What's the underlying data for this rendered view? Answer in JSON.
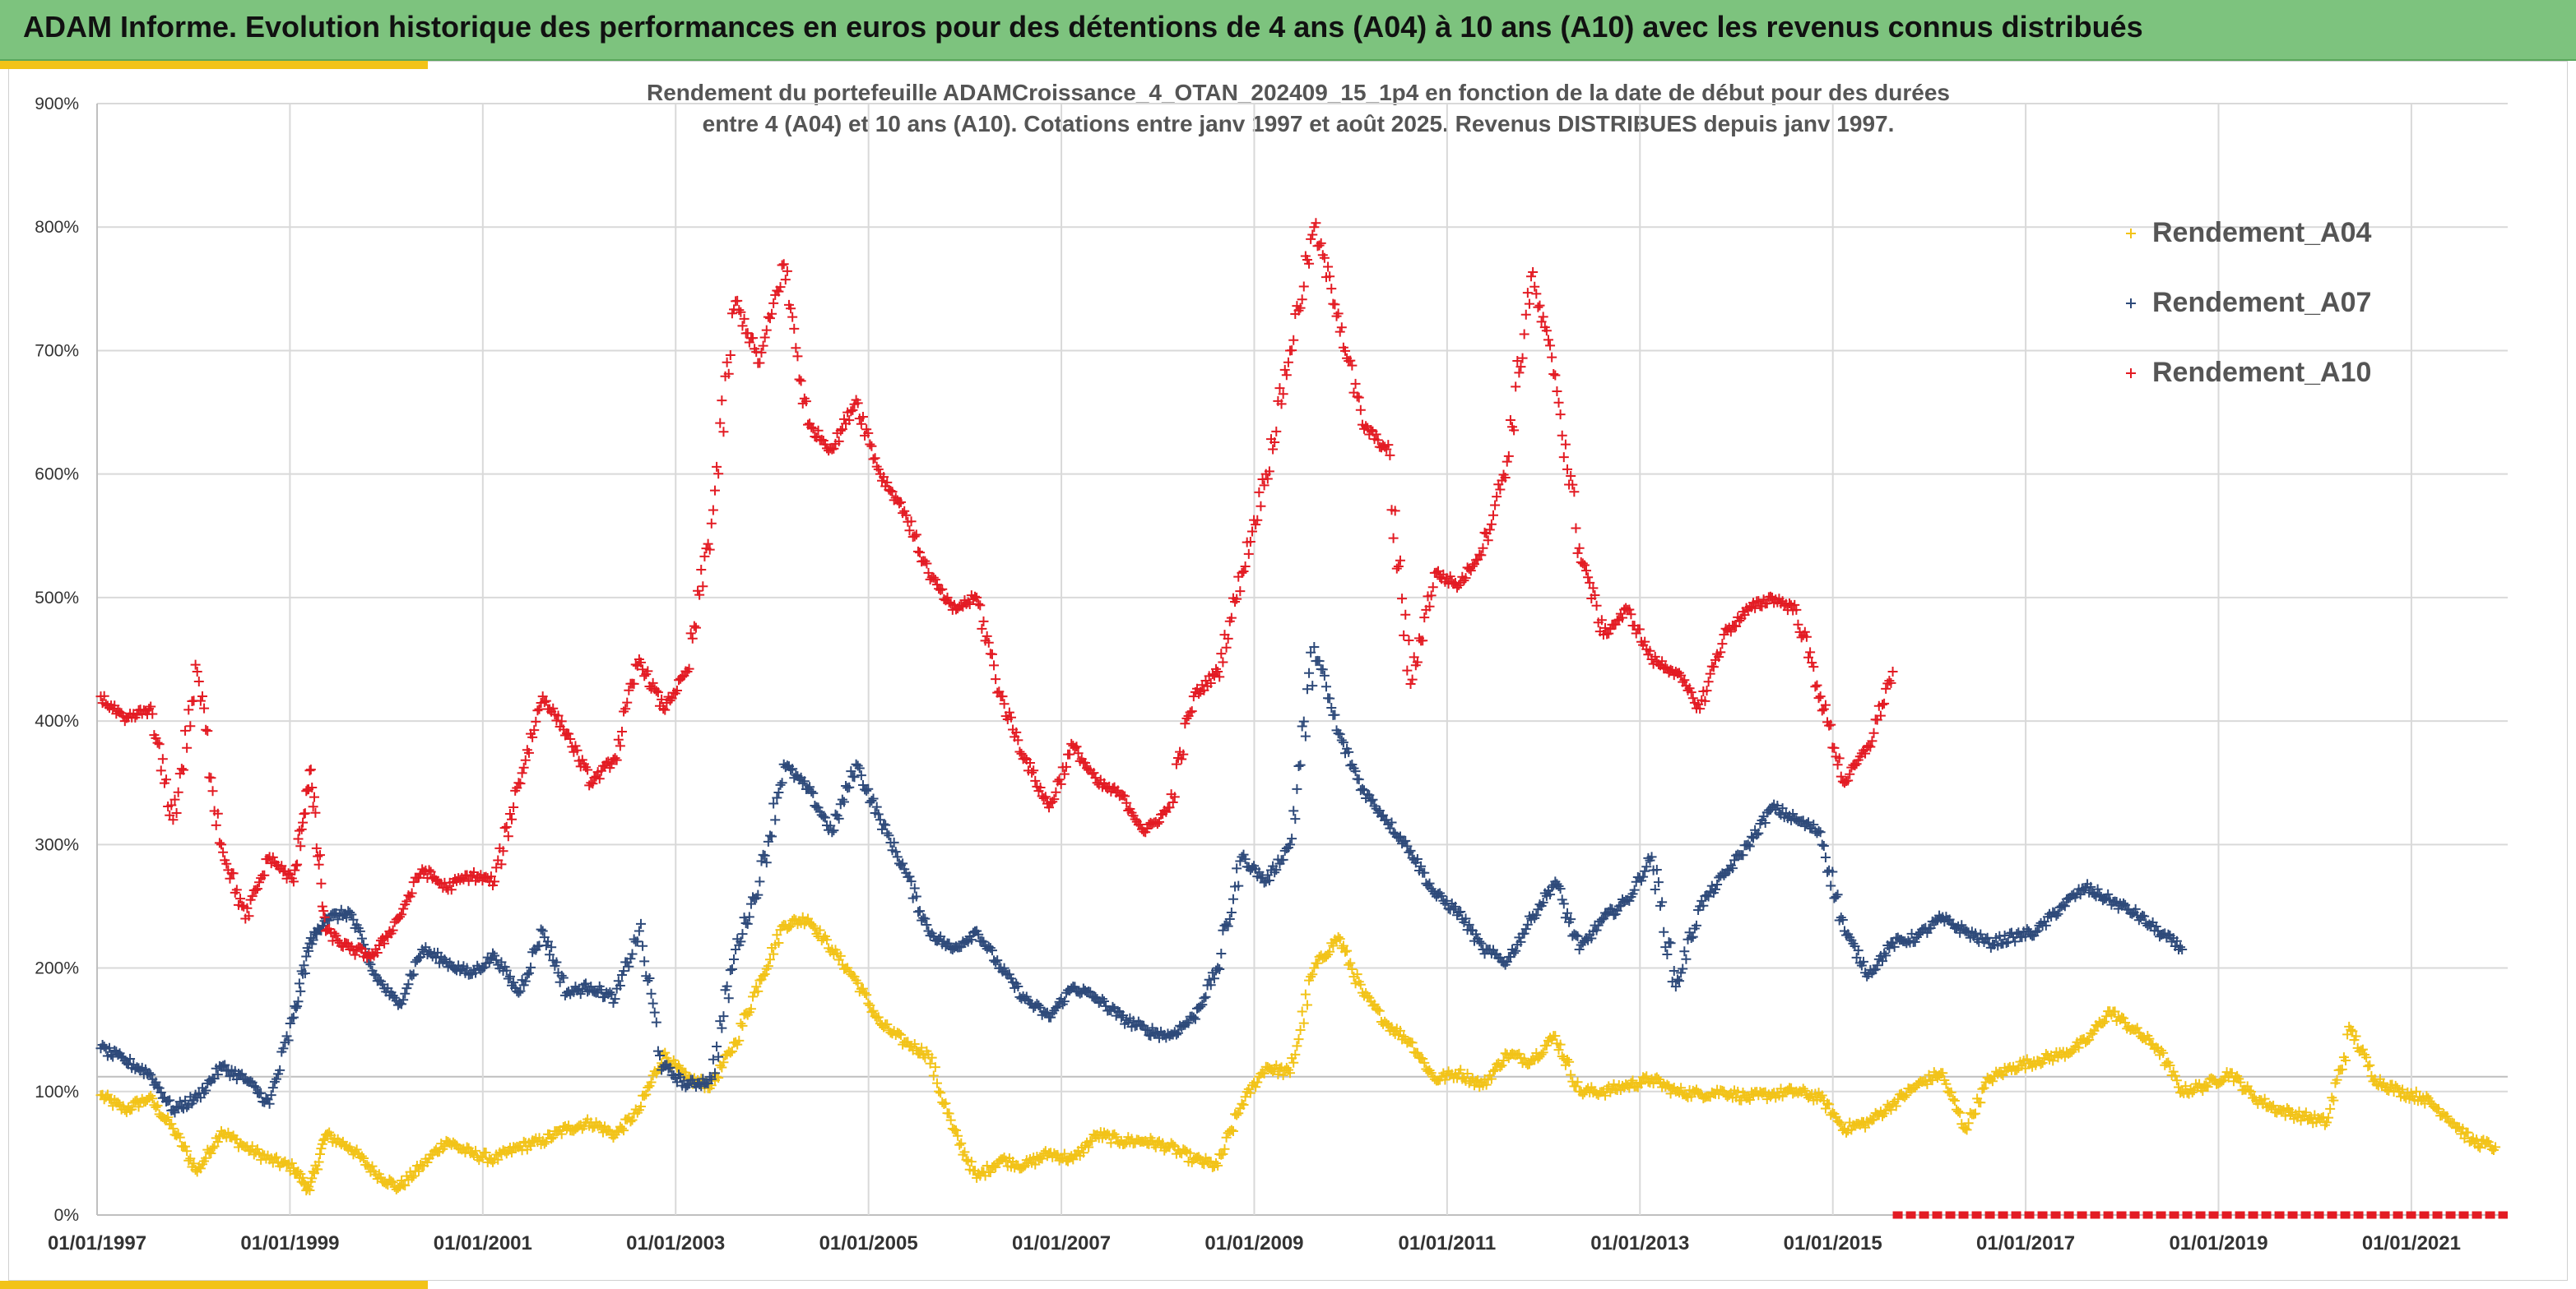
{
  "header": {
    "title": "ADAM Informe. Evolution historique des performances en euros pour des détentions de 4 ans (A04) à 10 ans (A10) avec les revenus connus distribués"
  },
  "chart_data": {
    "type": "scatter",
    "title_line1": "Rendement du portefeuille ADAMCroissance_4_OTAN_202409_15_1p4  en fonction de la date de début pour des durées",
    "title_line2": "entre 4 (A04) et 10 ans (A10). Cotations entre janv 1997 et août 2025. Revenus DISTRIBUES depuis janv 1997.",
    "xlabel": "",
    "ylabel": "",
    "x_tick_labels": [
      "01/01/1997",
      "01/01/1999",
      "01/01/2001",
      "01/01/2003",
      "01/01/2005",
      "01/01/2007",
      "01/01/2009",
      "01/01/2011",
      "01/01/2013",
      "01/01/2015",
      "01/01/2017",
      "01/01/2019",
      "01/01/2021"
    ],
    "y_tick_labels": [
      "0%",
      "100%",
      "200%",
      "300%",
      "400%",
      "500%",
      "600%",
      "700%",
      "800%",
      "900%"
    ],
    "xlim": [
      "1997-01-01",
      "2021-12-31"
    ],
    "ylim": [
      0,
      900
    ],
    "y_unit": "%",
    "grid": true,
    "legend_position": "top-right",
    "colors": {
      "Rendement_A04": "#f2c318",
      "Rendement_A07": "#2e4a7a",
      "Rendement_A10": "#e31b23",
      "grid": "#d9d9d9",
      "axis_text": "#333333"
    },
    "series": [
      {
        "name": "Rendement_A04",
        "points": [
          [
            "1997-01",
            97
          ],
          [
            "1997-04",
            85
          ],
          [
            "1997-07",
            95
          ],
          [
            "1997-10",
            70
          ],
          [
            "1998-01",
            35
          ],
          [
            "1998-04",
            68
          ],
          [
            "1998-07",
            55
          ],
          [
            "1998-10",
            45
          ],
          [
            "1999-01",
            38
          ],
          [
            "1999-03",
            20
          ],
          [
            "1999-05",
            65
          ],
          [
            "1999-08",
            55
          ],
          [
            "1999-11",
            35
          ],
          [
            "2000-02",
            22
          ],
          [
            "2000-05",
            40
          ],
          [
            "2000-08",
            60
          ],
          [
            "2000-11",
            50
          ],
          [
            "2001-02",
            45
          ],
          [
            "2001-05",
            55
          ],
          [
            "2001-08",
            60
          ],
          [
            "2001-11",
            70
          ],
          [
            "2002-02",
            75
          ],
          [
            "2002-05",
            65
          ],
          [
            "2002-08",
            85
          ],
          [
            "2002-11",
            130
          ],
          [
            "2003-02",
            110
          ],
          [
            "2003-05",
            105
          ],
          [
            "2003-08",
            140
          ],
          [
            "2003-11",
            190
          ],
          [
            "2004-02",
            235
          ],
          [
            "2004-05",
            240
          ],
          [
            "2004-08",
            215
          ],
          [
            "2004-11",
            190
          ],
          [
            "2005-02",
            155
          ],
          [
            "2005-05",
            140
          ],
          [
            "2005-08",
            130
          ],
          [
            "2005-11",
            70
          ],
          [
            "2006-02",
            30
          ],
          [
            "2006-05",
            45
          ],
          [
            "2006-08",
            40
          ],
          [
            "2006-11",
            50
          ],
          [
            "2007-02",
            45
          ],
          [
            "2007-05",
            65
          ],
          [
            "2007-08",
            60
          ],
          [
            "2007-11",
            60
          ],
          [
            "2008-02",
            55
          ],
          [
            "2008-05",
            45
          ],
          [
            "2008-08",
            40
          ],
          [
            "2008-11",
            90
          ],
          [
            "2009-02",
            120
          ],
          [
            "2009-05",
            115
          ],
          [
            "2009-08",
            200
          ],
          [
            "2009-11",
            225
          ],
          [
            "2010-02",
            180
          ],
          [
            "2010-05",
            155
          ],
          [
            "2010-08",
            140
          ],
          [
            "2010-11",
            110
          ],
          [
            "2011-02",
            115
          ],
          [
            "2011-05",
            105
          ],
          [
            "2011-08",
            130
          ],
          [
            "2011-11",
            125
          ],
          [
            "2012-02",
            145
          ],
          [
            "2012-05",
            100
          ],
          [
            "2012-08",
            100
          ],
          [
            "2012-11",
            105
          ],
          [
            "2013-02",
            110
          ],
          [
            "2013-05",
            100
          ],
          [
            "2013-08",
            98
          ],
          [
            "2013-11",
            100
          ],
          [
            "2014-02",
            95
          ],
          [
            "2014-05",
            98
          ],
          [
            "2014-08",
            100
          ],
          [
            "2014-11",
            95
          ],
          [
            "2015-02",
            70
          ],
          [
            "2015-05",
            75
          ],
          [
            "2015-08",
            90
          ],
          [
            "2015-11",
            105
          ],
          [
            "2016-02",
            115
          ],
          [
            "2016-05",
            70
          ],
          [
            "2016-08",
            110
          ],
          [
            "2016-11",
            120
          ],
          [
            "2017-02",
            125
          ],
          [
            "2017-05",
            130
          ],
          [
            "2017-08",
            140
          ],
          [
            "2017-11",
            165
          ],
          [
            "2018-02",
            150
          ],
          [
            "2018-05",
            135
          ],
          [
            "2018-08",
            100
          ],
          [
            "2018-11",
            105
          ],
          [
            "2019-02",
            115
          ],
          [
            "2019-05",
            95
          ],
          [
            "2019-08",
            85
          ],
          [
            "2019-11",
            80
          ],
          [
            "2020-02",
            75
          ],
          [
            "2020-05",
            150
          ],
          [
            "2020-08",
            110
          ],
          [
            "2020-11",
            100
          ],
          [
            "2021-02",
            95
          ],
          [
            "2021-05",
            80
          ],
          [
            "2021-08",
            60
          ],
          [
            "2021-11",
            55
          ]
        ]
      },
      {
        "name": "Rendement_A07",
        "points": [
          [
            "1997-01",
            135
          ],
          [
            "1997-04",
            125
          ],
          [
            "1997-07",
            115
          ],
          [
            "1997-10",
            85
          ],
          [
            "1998-01",
            95
          ],
          [
            "1998-04",
            120
          ],
          [
            "1998-07",
            110
          ],
          [
            "1998-10",
            90
          ],
          [
            "1999-01",
            160
          ],
          [
            "1999-03",
            220
          ],
          [
            "1999-05",
            240
          ],
          [
            "1999-08",
            245
          ],
          [
            "1999-11",
            195
          ],
          [
            "2000-02",
            170
          ],
          [
            "2000-05",
            215
          ],
          [
            "2000-08",
            205
          ],
          [
            "2000-11",
            195
          ],
          [
            "2001-02",
            210
          ],
          [
            "2001-05",
            180
          ],
          [
            "2001-08",
            230
          ],
          [
            "2001-11",
            180
          ],
          [
            "2002-02",
            185
          ],
          [
            "2002-05",
            175
          ],
          [
            "2002-08",
            230
          ],
          [
            "2002-11",
            120
          ],
          [
            "2003-02",
            105
          ],
          [
            "2003-05",
            110
          ],
          [
            "2003-08",
            215
          ],
          [
            "2003-11",
            270
          ],
          [
            "2004-02",
            365
          ],
          [
            "2004-05",
            345
          ],
          [
            "2004-08",
            310
          ],
          [
            "2004-11",
            365
          ],
          [
            "2005-02",
            320
          ],
          [
            "2005-05",
            280
          ],
          [
            "2005-08",
            230
          ],
          [
            "2005-11",
            215
          ],
          [
            "2006-02",
            230
          ],
          [
            "2006-05",
            200
          ],
          [
            "2006-08",
            175
          ],
          [
            "2006-11",
            160
          ],
          [
            "2007-02",
            185
          ],
          [
            "2007-05",
            175
          ],
          [
            "2007-08",
            160
          ],
          [
            "2007-11",
            150
          ],
          [
            "2008-02",
            145
          ],
          [
            "2008-05",
            160
          ],
          [
            "2008-08",
            200
          ],
          [
            "2008-11",
            290
          ],
          [
            "2009-02",
            270
          ],
          [
            "2009-05",
            300
          ],
          [
            "2009-08",
            460
          ],
          [
            "2009-11",
            390
          ],
          [
            "2010-02",
            345
          ],
          [
            "2010-05",
            320
          ],
          [
            "2010-08",
            295
          ],
          [
            "2010-11",
            260
          ],
          [
            "2011-02",
            245
          ],
          [
            "2011-05",
            215
          ],
          [
            "2011-08",
            205
          ],
          [
            "2011-11",
            240
          ],
          [
            "2012-02",
            270
          ],
          [
            "2012-05",
            215
          ],
          [
            "2012-08",
            240
          ],
          [
            "2012-11",
            255
          ],
          [
            "2013-02",
            290
          ],
          [
            "2013-05",
            185
          ],
          [
            "2013-08",
            250
          ],
          [
            "2013-11",
            275
          ],
          [
            "2014-02",
            300
          ],
          [
            "2014-05",
            330
          ],
          [
            "2014-08",
            320
          ],
          [
            "2014-11",
            310
          ],
          [
            "2015-02",
            230
          ],
          [
            "2015-05",
            195
          ],
          [
            "2015-08",
            220
          ],
          [
            "2015-11",
            225
          ],
          [
            "2016-02",
            240
          ],
          [
            "2016-05",
            230
          ],
          [
            "2016-08",
            220
          ],
          [
            "2016-11",
            225
          ],
          [
            "2017-02",
            230
          ],
          [
            "2017-05",
            250
          ],
          [
            "2017-08",
            265
          ],
          [
            "2017-11",
            255
          ],
          [
            "2018-02",
            245
          ],
          [
            "2018-05",
            230
          ],
          [
            "2018-08",
            215
          ]
        ]
      },
      {
        "name": "Rendement_A10",
        "points": [
          [
            "1997-01",
            420
          ],
          [
            "1997-04",
            400
          ],
          [
            "1997-07",
            410
          ],
          [
            "1997-10",
            320
          ],
          [
            "1998-01",
            440
          ],
          [
            "1998-04",
            300
          ],
          [
            "1998-07",
            240
          ],
          [
            "1998-10",
            290
          ],
          [
            "1999-01",
            270
          ],
          [
            "1999-03",
            360
          ],
          [
            "1999-05",
            230
          ],
          [
            "1999-08",
            215
          ],
          [
            "1999-11",
            210
          ],
          [
            "2000-02",
            240
          ],
          [
            "2000-05",
            280
          ],
          [
            "2000-08",
            265
          ],
          [
            "2000-11",
            275
          ],
          [
            "2001-02",
            270
          ],
          [
            "2001-05",
            350
          ],
          [
            "2001-08",
            420
          ],
          [
            "2001-11",
            390
          ],
          [
            "2002-02",
            350
          ],
          [
            "2002-05",
            370
          ],
          [
            "2002-08",
            450
          ],
          [
            "2002-11",
            410
          ],
          [
            "2003-02",
            440
          ],
          [
            "2003-05",
            560
          ],
          [
            "2003-08",
            740
          ],
          [
            "2003-11",
            690
          ],
          [
            "2004-02",
            770
          ],
          [
            "2004-05",
            640
          ],
          [
            "2004-08",
            620
          ],
          [
            "2004-11",
            660
          ],
          [
            "2005-02",
            600
          ],
          [
            "2005-05",
            570
          ],
          [
            "2005-08",
            520
          ],
          [
            "2005-11",
            490
          ],
          [
            "2006-02",
            500
          ],
          [
            "2006-05",
            420
          ],
          [
            "2006-08",
            370
          ],
          [
            "2006-11",
            330
          ],
          [
            "2007-02",
            380
          ],
          [
            "2007-05",
            350
          ],
          [
            "2007-08",
            340
          ],
          [
            "2007-11",
            310
          ],
          [
            "2008-02",
            330
          ],
          [
            "2008-05",
            420
          ],
          [
            "2008-08",
            440
          ],
          [
            "2008-11",
            520
          ],
          [
            "2009-02",
            600
          ],
          [
            "2009-05",
            700
          ],
          [
            "2009-08",
            800
          ],
          [
            "2009-11",
            730
          ],
          [
            "2010-02",
            640
          ],
          [
            "2010-05",
            620
          ],
          [
            "2010-08",
            430
          ],
          [
            "2010-11",
            520
          ],
          [
            "2011-02",
            510
          ],
          [
            "2011-05",
            540
          ],
          [
            "2011-08",
            610
          ],
          [
            "2011-11",
            760
          ],
          [
            "2012-02",
            680
          ],
          [
            "2012-05",
            540
          ],
          [
            "2012-08",
            470
          ],
          [
            "2012-11",
            490
          ],
          [
            "2013-02",
            450
          ],
          [
            "2013-05",
            440
          ],
          [
            "2013-08",
            410
          ],
          [
            "2013-11",
            470
          ],
          [
            "2014-02",
            490
          ],
          [
            "2014-05",
            500
          ],
          [
            "2014-08",
            490
          ],
          [
            "2014-11",
            420
          ],
          [
            "2015-02",
            350
          ],
          [
            "2015-05",
            380
          ],
          [
            "2015-08",
            440
          ]
        ]
      }
    ],
    "baseline_marker": {
      "from": "2015-08",
      "to": "2021-12",
      "value": 0,
      "color": "#e31b23"
    }
  }
}
